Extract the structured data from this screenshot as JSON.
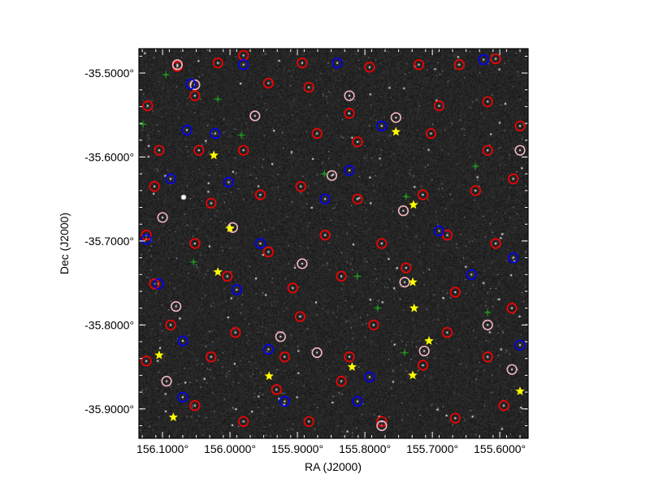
{
  "chart_data": {
    "type": "scatter",
    "xlabel": "RA (J2000)",
    "ylabel": "Dec (J2000)",
    "xlim": [
      156.135,
      155.558
    ],
    "ylim": [
      -35.935,
      -35.471
    ],
    "x_ticks": [
      156.1,
      156.0,
      155.9,
      155.8,
      155.7,
      155.6
    ],
    "x_tick_labels": [
      "156.1000°",
      "156.0000°",
      "155.9000°",
      "155.8000°",
      "155.7000°",
      "155.6000°"
    ],
    "y_ticks": [
      -35.5,
      -35.6,
      -35.7,
      -35.8,
      -35.9
    ],
    "y_tick_labels": [
      "-35.5000°",
      "-35.6000°",
      "-35.7000°",
      "-35.8000°",
      "-35.9000°"
    ],
    "background": "grayscale sky image",
    "grid": false,
    "series": [
      {
        "marker": "circle",
        "color": "#ff0000",
        "points": [
          [
            156.078,
            -35.492
          ],
          [
            156.018,
            -35.488
          ],
          [
            155.98,
            -35.479
          ],
          [
            155.893,
            -35.488
          ],
          [
            155.793,
            -35.493
          ],
          [
            155.72,
            -35.49
          ],
          [
            155.66,
            -35.49
          ],
          [
            155.606,
            -35.483
          ],
          [
            156.122,
            -35.539
          ],
          [
            156.052,
            -35.527
          ],
          [
            155.943,
            -35.512
          ],
          [
            155.883,
            -35.517
          ],
          [
            155.823,
            -35.548
          ],
          [
            155.69,
            -35.539
          ],
          [
            155.618,
            -35.534
          ],
          [
            155.57,
            -35.563
          ],
          [
            156.105,
            -35.592
          ],
          [
            156.046,
            -35.592
          ],
          [
            155.98,
            -35.592
          ],
          [
            155.871,
            -35.572
          ],
          [
            155.811,
            -35.582
          ],
          [
            155.702,
            -35.572
          ],
          [
            155.618,
            -35.592
          ],
          [
            156.112,
            -35.635
          ],
          [
            156.028,
            -35.655
          ],
          [
            155.955,
            -35.645
          ],
          [
            155.895,
            -35.635
          ],
          [
            155.811,
            -35.65
          ],
          [
            155.714,
            -35.645
          ],
          [
            155.636,
            -35.64
          ],
          [
            155.58,
            -35.626
          ],
          [
            156.124,
            -35.693
          ],
          [
            156.052,
            -35.703
          ],
          [
            155.943,
            -35.713
          ],
          [
            155.859,
            -35.693
          ],
          [
            155.775,
            -35.703
          ],
          [
            155.678,
            -35.693
          ],
          [
            155.606,
            -35.703
          ],
          [
            156.112,
            -35.751
          ],
          [
            156.004,
            -35.742
          ],
          [
            155.907,
            -35.756
          ],
          [
            155.835,
            -35.742
          ],
          [
            155.739,
            -35.732
          ],
          [
            155.666,
            -35.761
          ],
          [
            155.582,
            -35.78
          ],
          [
            156.088,
            -35.8
          ],
          [
            155.992,
            -35.809
          ],
          [
            155.896,
            -35.79
          ],
          [
            155.787,
            -35.8
          ],
          [
            155.678,
            -35.809
          ],
          [
            156.124,
            -35.843
          ],
          [
            156.028,
            -35.838
          ],
          [
            155.919,
            -35.838
          ],
          [
            155.823,
            -35.838
          ],
          [
            155.714,
            -35.848
          ],
          [
            155.618,
            -35.838
          ],
          [
            156.052,
            -35.896
          ],
          [
            155.98,
            -35.915
          ],
          [
            155.883,
            -35.915
          ],
          [
            155.775,
            -35.915
          ],
          [
            155.666,
            -35.911
          ],
          [
            155.594,
            -35.896
          ],
          [
            155.835,
            -35.867
          ],
          [
            155.931,
            -35.877
          ]
        ]
      },
      {
        "marker": "circle",
        "color": "#f4b6c2",
        "points": [
          [
            156.078,
            -35.49
          ],
          [
            156.052,
            -35.514
          ],
          [
            155.963,
            -35.551
          ],
          [
            155.823,
            -35.527
          ],
          [
            155.754,
            -35.553
          ],
          [
            155.57,
            -35.592
          ],
          [
            156.1,
            -35.672
          ],
          [
            155.996,
            -35.684
          ],
          [
            155.849,
            -35.622
          ],
          [
            155.743,
            -35.664
          ],
          [
            155.893,
            -35.727
          ],
          [
            155.741,
            -35.749
          ],
          [
            155.925,
            -35.814
          ],
          [
            155.871,
            -35.833
          ],
          [
            155.775,
            -35.92
          ],
          [
            156.094,
            -35.867
          ],
          [
            155.618,
            -35.8
          ],
          [
            155.582,
            -35.853
          ],
          [
            155.712,
            -35.831
          ],
          [
            156.08,
            -35.778
          ]
        ]
      },
      {
        "marker": "circle",
        "color": "#0000ff",
        "points": [
          [
            156.058,
            -35.513
          ],
          [
            155.98,
            -35.49
          ],
          [
            155.841,
            -35.488
          ],
          [
            155.624,
            -35.484
          ],
          [
            156.064,
            -35.568
          ],
          [
            156.022,
            -35.572
          ],
          [
            155.775,
            -35.563
          ],
          [
            156.088,
            -35.626
          ],
          [
            156.002,
            -35.63
          ],
          [
            155.859,
            -35.65
          ],
          [
            155.823,
            -35.616
          ],
          [
            156.124,
            -35.698
          ],
          [
            155.955,
            -35.703
          ],
          [
            155.69,
            -35.688
          ],
          [
            155.58,
            -35.72
          ],
          [
            156.106,
            -35.751
          ],
          [
            155.99,
            -35.758
          ],
          [
            155.642,
            -35.74
          ],
          [
            156.07,
            -35.819
          ],
          [
            155.943,
            -35.829
          ],
          [
            155.793,
            -35.862
          ],
          [
            155.919,
            -35.891
          ],
          [
            155.811,
            -35.891
          ],
          [
            156.07,
            -35.886
          ],
          [
            155.57,
            -35.824
          ]
        ]
      },
      {
        "marker": "cross",
        "color": "#1f8f1f",
        "points": [
          [
            156.095,
            -35.502
          ],
          [
            156.018,
            -35.531
          ],
          [
            155.983,
            -35.574
          ],
          [
            156.129,
            -35.561
          ],
          [
            155.86,
            -35.62
          ],
          [
            155.739,
            -35.647
          ],
          [
            156.054,
            -35.725
          ],
          [
            155.811,
            -35.742
          ],
          [
            155.781,
            -35.78
          ],
          [
            155.741,
            -35.833
          ],
          [
            155.636,
            -35.611
          ],
          [
            155.618,
            -35.785
          ]
        ]
      },
      {
        "marker": "star",
        "color": "#ffff00",
        "points": [
          [
            156.024,
            -35.598
          ],
          [
            156.0,
            -35.685
          ],
          [
            156.018,
            -35.737
          ],
          [
            156.105,
            -35.836
          ],
          [
            155.942,
            -35.861
          ],
          [
            155.819,
            -35.85
          ],
          [
            155.729,
            -35.86
          ],
          [
            155.705,
            -35.819
          ],
          [
            155.727,
            -35.78
          ],
          [
            155.729,
            -35.749
          ],
          [
            155.728,
            -35.657
          ],
          [
            155.754,
            -35.57
          ],
          [
            156.084,
            -35.91
          ],
          [
            155.57,
            -35.879
          ]
        ]
      }
    ]
  }
}
